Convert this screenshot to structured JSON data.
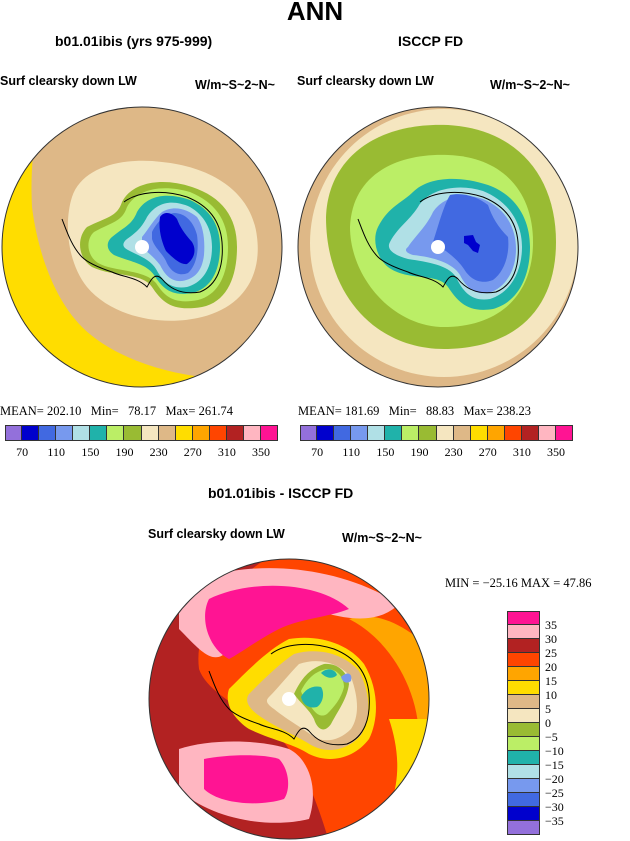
{
  "title": "ANN",
  "panels": [
    {
      "title": "b01.01ibis (yrs 975-999)",
      "variable": "Surf clearsky down LW",
      "units": "W/m~S~2~N~",
      "stats": {
        "mean_label": "MEAN=",
        "mean": "202.10",
        "min_label": "Min=",
        "min": "78.17",
        "max_label": "Max=",
        "max": "261.74"
      }
    },
    {
      "title": "ISCCP FD",
      "variable": "Surf clearsky down LW",
      "units": "W/m~S~2~N~",
      "stats": {
        "mean_label": "MEAN=",
        "mean": "181.69",
        "min_label": "Min=",
        "min": "88.83",
        "max_label": "Max=",
        "max": "238.23"
      }
    }
  ],
  "abs_colorbar": {
    "colors": [
      "#9370db",
      "#0000cd",
      "#4169e1",
      "#7799ee",
      "#b0e0e6",
      "#20b2aa",
      "#bbee66",
      "#99bb33",
      "#f5e6c0",
      "#deb887",
      "#ffdd00",
      "#ffa500",
      "#ff4500",
      "#b22222",
      "#ffb6c1",
      "#ff1493"
    ],
    "labels": [
      "70",
      "110",
      "150",
      "190",
      "230",
      "270",
      "310",
      "350"
    ]
  },
  "diff_panel": {
    "title": "b01.01ibis - ISCCP FD",
    "variable": "Surf clearsky down LW",
    "units": "W/m~S~2~N~",
    "stats_text": "MIN = −25.16 MAX =  47.86"
  },
  "diff_colorbar": {
    "colors": [
      "#ff1493",
      "#ffb6c1",
      "#b22222",
      "#ff4500",
      "#ffa500",
      "#ffdd00",
      "#deb887",
      "#f5e6c0",
      "#99bb33",
      "#bbee66",
      "#20b2aa",
      "#b0e0e6",
      "#7799ee",
      "#4169e1",
      "#0000cd",
      "#9370db"
    ],
    "labels": [
      "35",
      "30",
      "25",
      "20",
      "15",
      "10",
      "5",
      "0",
      "−5",
      "−10",
      "−15",
      "−20",
      "−25",
      "−30",
      "−35"
    ]
  }
}
